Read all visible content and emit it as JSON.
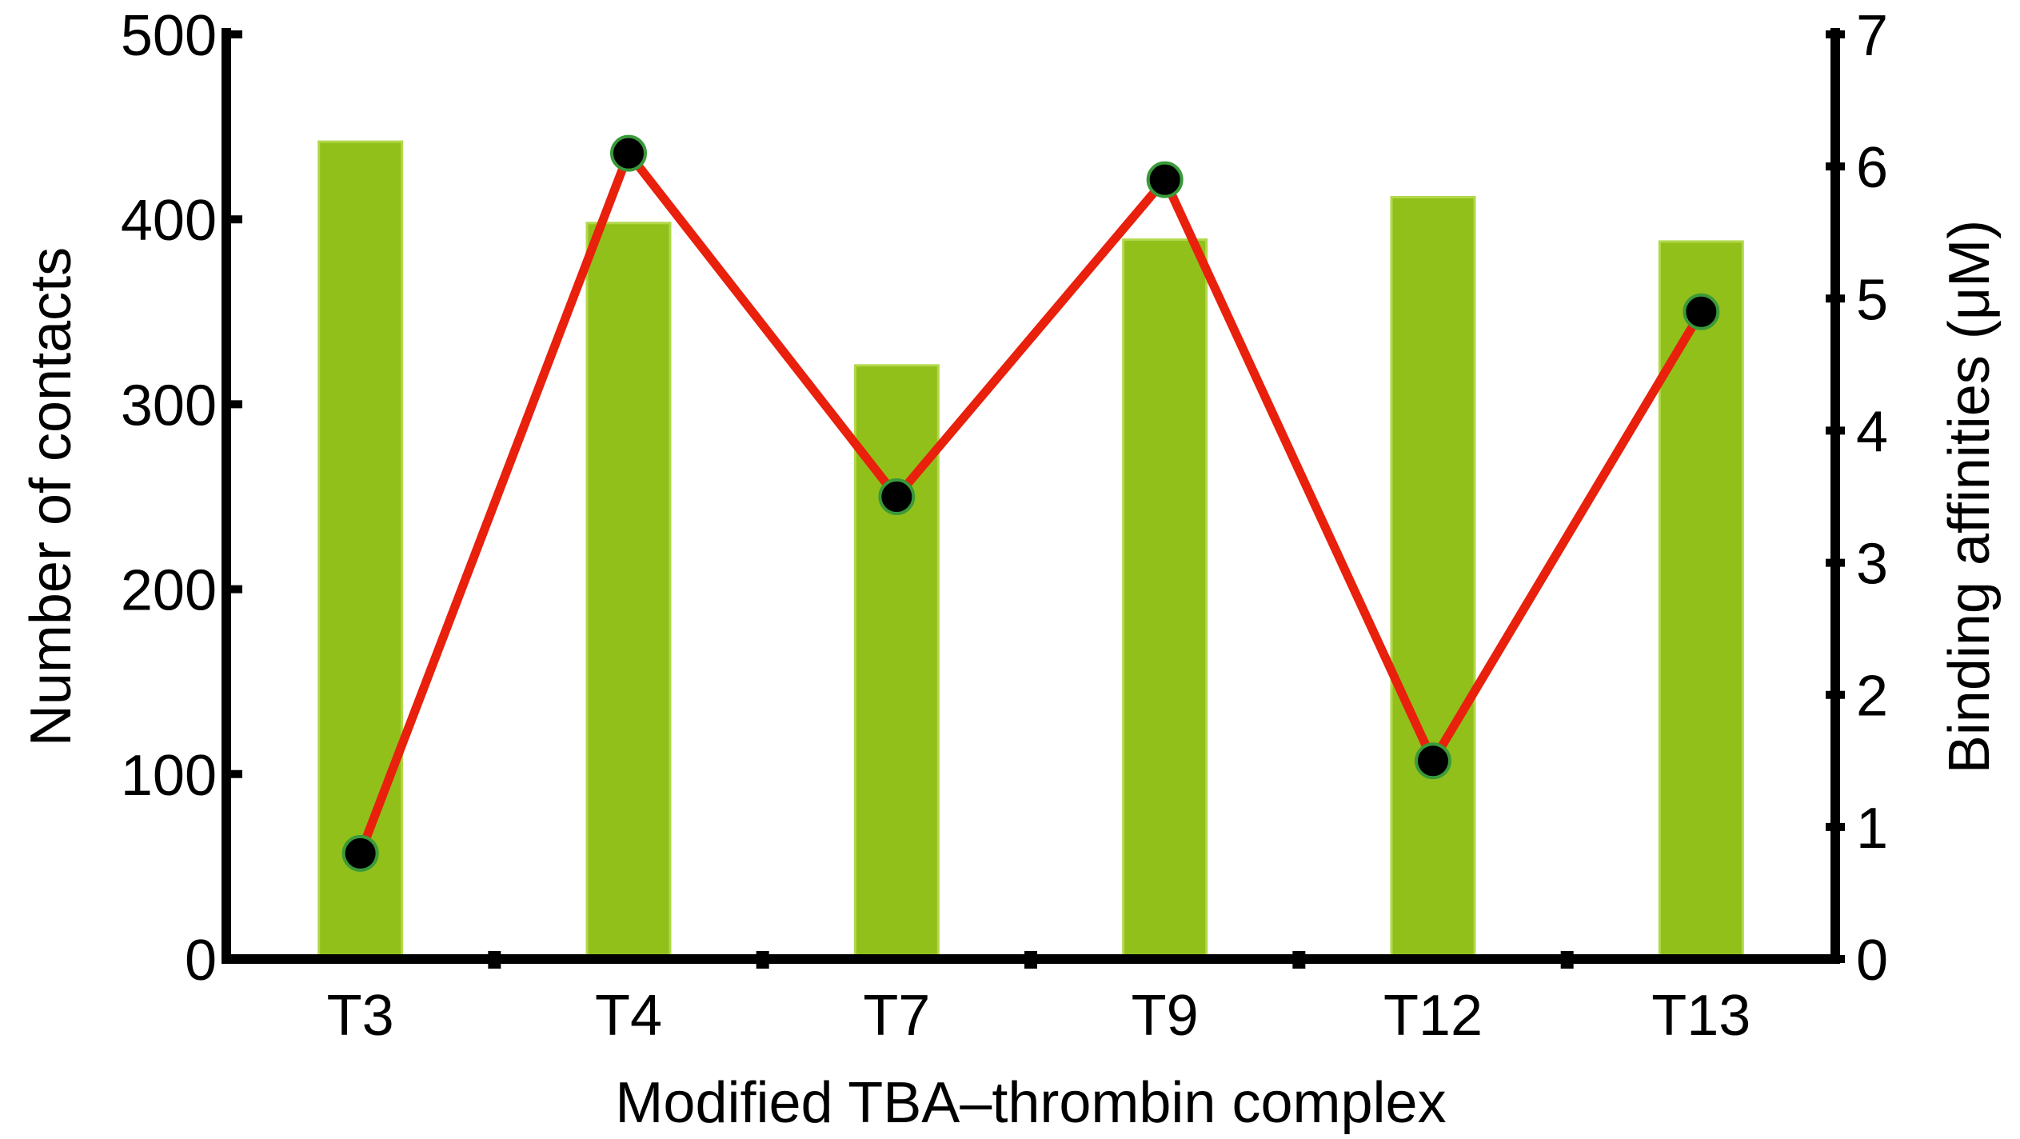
{
  "colors": {
    "bar_fill": "#92c01a",
    "bar_edge": "#b2d84a",
    "line": "#e8200c",
    "marker_fill": "#000000",
    "marker_edge": "#3a9a3a",
    "axis": "#000000"
  },
  "chart_data": {
    "type": "bar",
    "categories": [
      "T3",
      "T4",
      "T7",
      "T9",
      "T12",
      "T13"
    ],
    "xlabel": "Modified TBA–thrombin complex",
    "series": [
      {
        "name": "Number of contacts",
        "type": "bar",
        "axis": "left",
        "values": [
          442,
          398,
          321,
          389,
          412,
          388
        ]
      },
      {
        "name": "Binding affinities (μM)",
        "type": "line",
        "axis": "right",
        "values": [
          0.8,
          6.1,
          3.5,
          5.9,
          1.5,
          4.9
        ]
      }
    ],
    "y_left": {
      "label": "Number of contacts",
      "ylim": [
        0,
        500
      ],
      "ticks": [
        0,
        100,
        200,
        300,
        400,
        500
      ]
    },
    "y_right": {
      "label": "Binding affinities (μM)",
      "ylim": [
        0,
        7
      ],
      "ticks": [
        0,
        1,
        2,
        3,
        4,
        5,
        6,
        7
      ]
    },
    "grid": false,
    "legend": "none"
  }
}
